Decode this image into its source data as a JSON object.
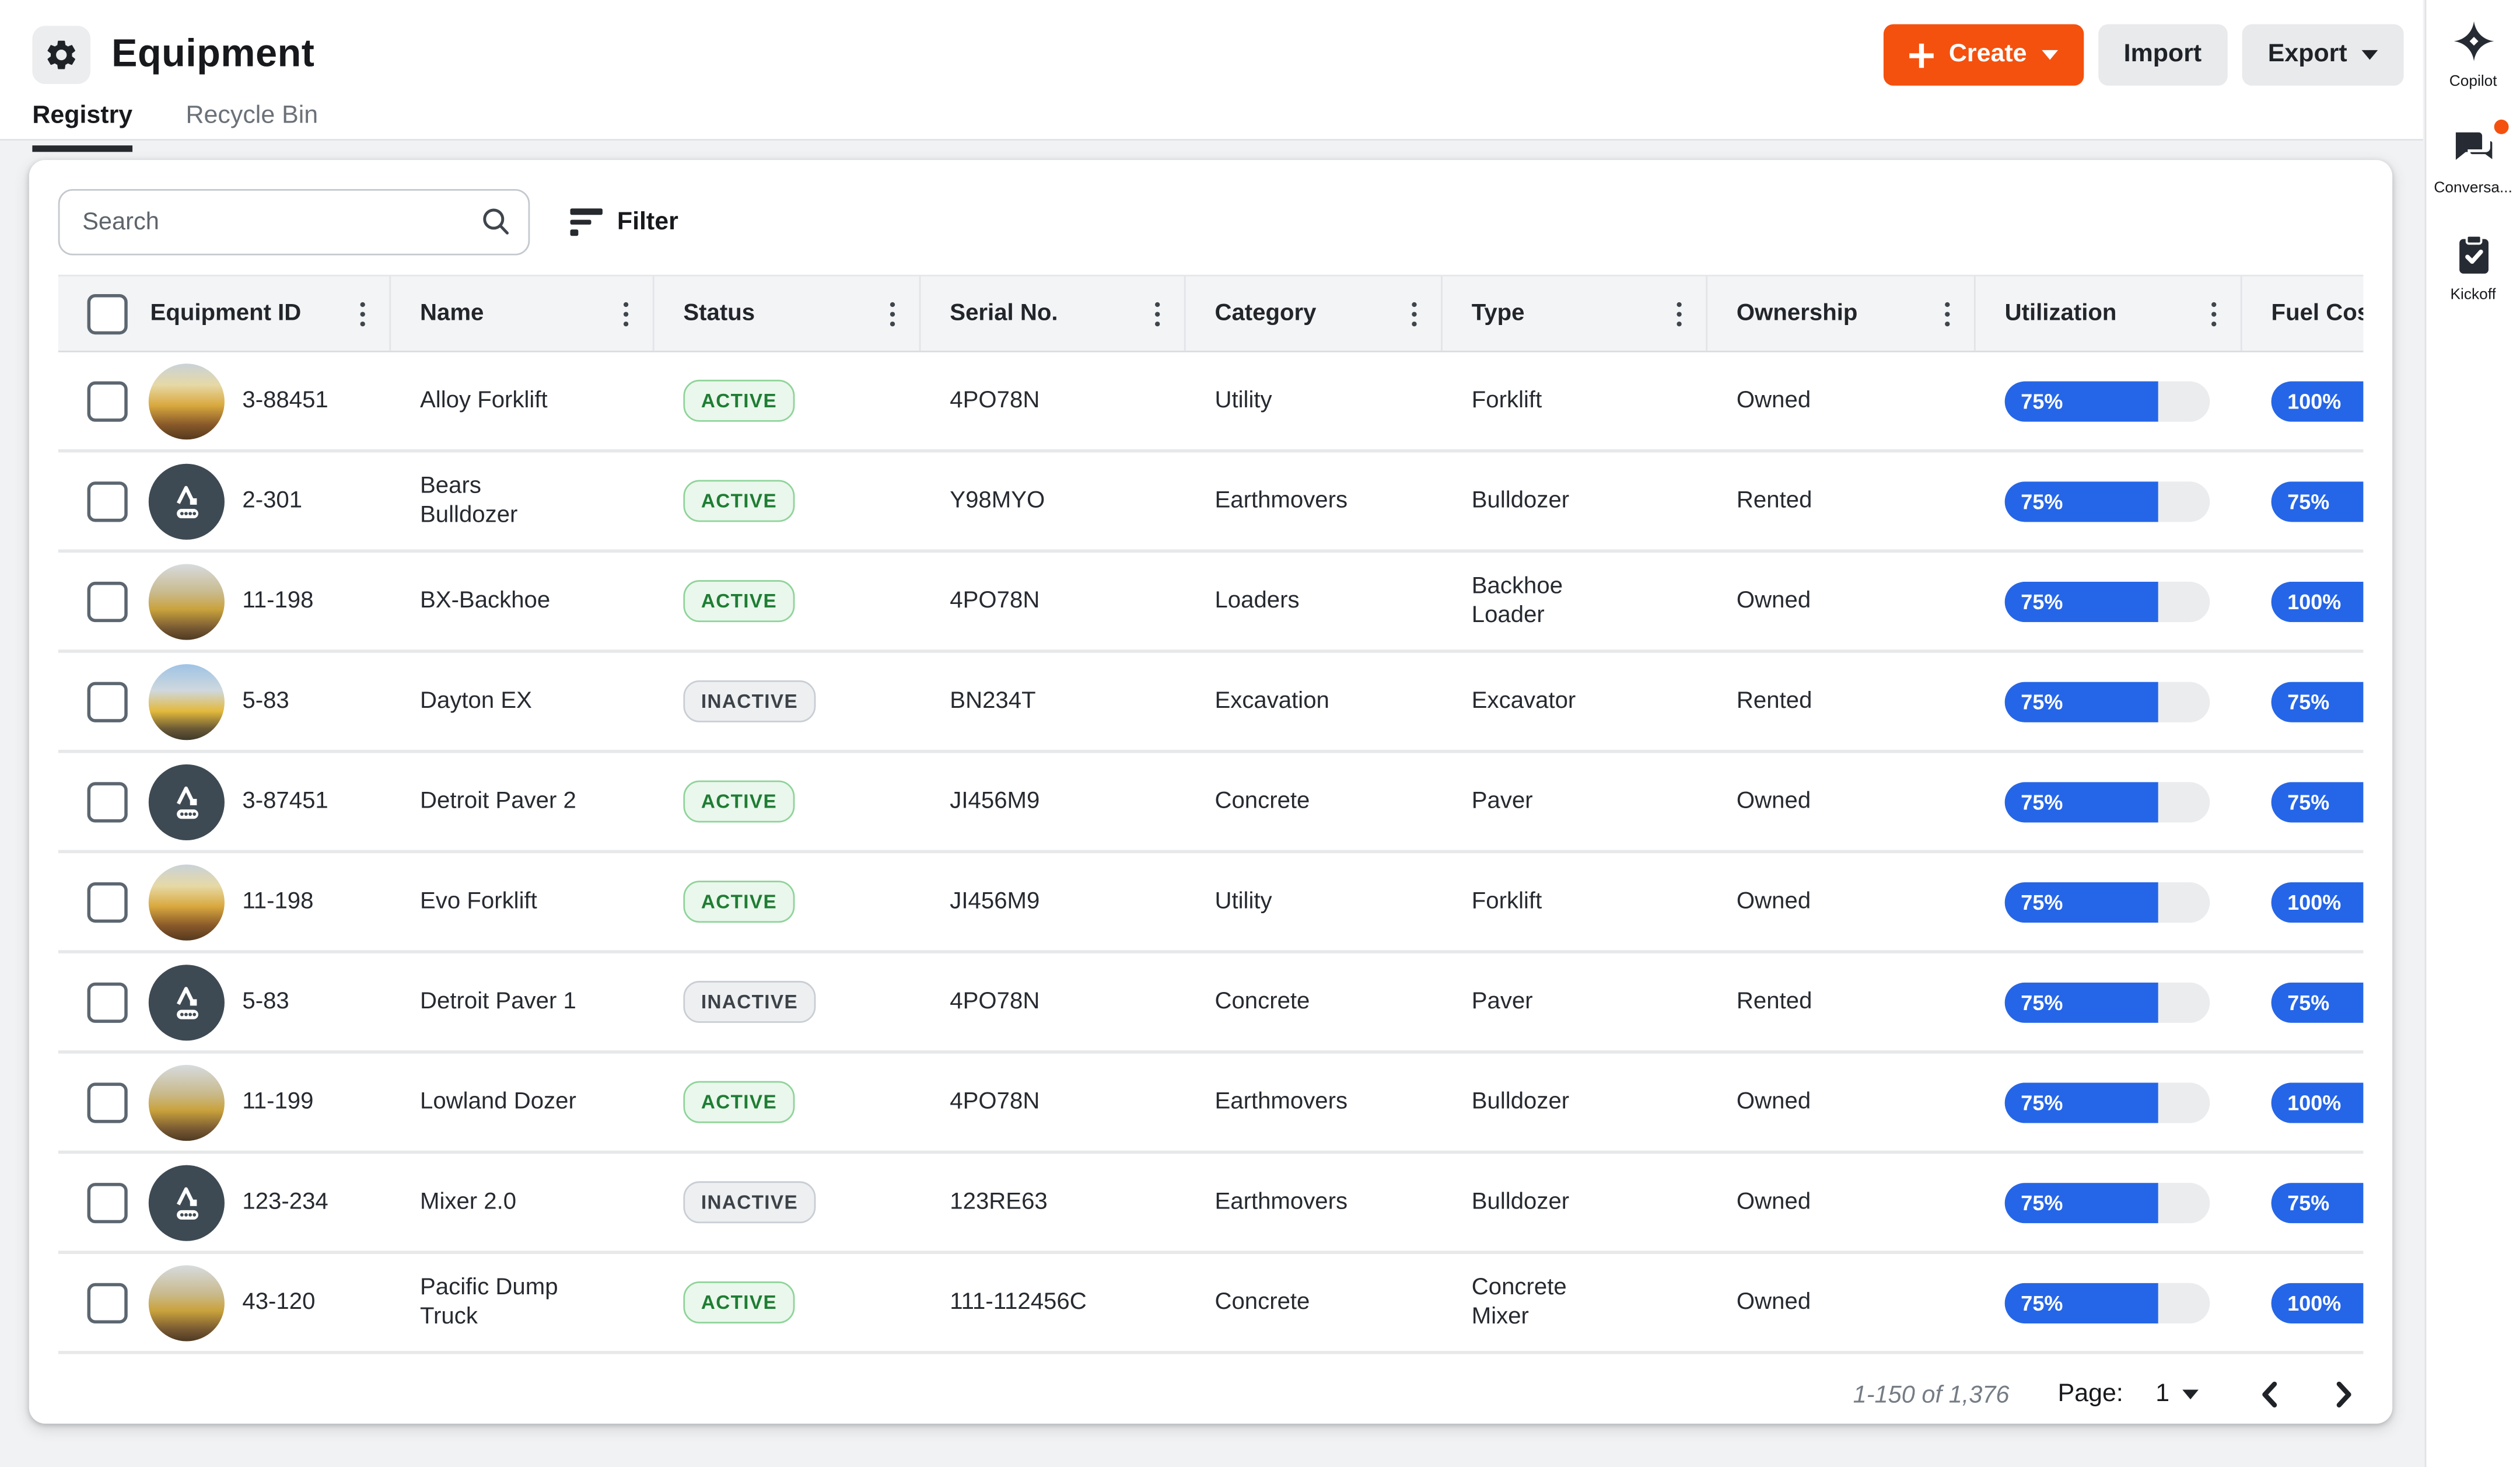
{
  "header": {
    "title": "Equipment",
    "create_label": "Create",
    "import_label": "Import",
    "export_label": "Export"
  },
  "tabs": [
    {
      "label": "Registry",
      "active": true
    },
    {
      "label": "Recycle Bin",
      "active": false
    }
  ],
  "toolbar": {
    "search_placeholder": "Search",
    "filter_label": "Filter"
  },
  "table": {
    "columns": [
      "Equipment ID",
      "Name",
      "Status",
      "Serial No.",
      "Category",
      "Type",
      "Ownership",
      "Utilization",
      "Fuel Costs"
    ],
    "rows": [
      {
        "id": "3-88451",
        "name": "Alloy Forklift",
        "status": "ACTIVE",
        "serial": "4PO78N",
        "category": "Utility",
        "type": "Forklift",
        "ownership": "Owned",
        "utilization": 75,
        "fuel": 100,
        "avatar": "photo-a"
      },
      {
        "id": "2-301",
        "name": "Bears Bulldozer",
        "status": "ACTIVE",
        "serial": "Y98MYO",
        "category": "Earthmovers",
        "type": "Bulldozer",
        "ownership": "Rented",
        "utilization": 75,
        "fuel": 75,
        "avatar": "icon"
      },
      {
        "id": "11-198",
        "name": "BX-Backhoe",
        "status": "ACTIVE",
        "serial": "4PO78N",
        "category": "Loaders",
        "type": "Backhoe Loader",
        "ownership": "Owned",
        "utilization": 75,
        "fuel": 100,
        "avatar": "photo-b"
      },
      {
        "id": "5-83",
        "name": "Dayton EX",
        "status": "INACTIVE",
        "serial": "BN234T",
        "category": "Excavation",
        "type": "Excavator",
        "ownership": "Rented",
        "utilization": 75,
        "fuel": 75,
        "avatar": "photo-c"
      },
      {
        "id": "3-87451",
        "name": "Detroit Paver 2",
        "status": "ACTIVE",
        "serial": "JI456M9",
        "category": "Concrete",
        "type": "Paver",
        "ownership": "Owned",
        "utilization": 75,
        "fuel": 75,
        "avatar": "icon"
      },
      {
        "id": "11-198",
        "name": "Evo Forklift",
        "status": "ACTIVE",
        "serial": "JI456M9",
        "category": "Utility",
        "type": "Forklift",
        "ownership": "Owned",
        "utilization": 75,
        "fuel": 100,
        "avatar": "photo-a"
      },
      {
        "id": "5-83",
        "name": "Detroit Paver 1",
        "status": "INACTIVE",
        "serial": "4PO78N",
        "category": "Concrete",
        "type": "Paver",
        "ownership": "Rented",
        "utilization": 75,
        "fuel": 75,
        "avatar": "icon"
      },
      {
        "id": "11-199",
        "name": "Lowland Dozer",
        "status": "ACTIVE",
        "serial": "4PO78N",
        "category": "Earthmovers",
        "type": "Bulldozer",
        "ownership": "Owned",
        "utilization": 75,
        "fuel": 100,
        "avatar": "photo-b"
      },
      {
        "id": "123-234",
        "name": "Mixer 2.0",
        "status": "INACTIVE",
        "serial": "123RE63",
        "category": "Earthmovers",
        "type": "Bulldozer",
        "ownership": "Owned",
        "utilization": 75,
        "fuel": 75,
        "avatar": "icon"
      },
      {
        "id": "43-120",
        "name": "Pacific Dump Truck",
        "status": "ACTIVE",
        "serial": "111-112456C",
        "category": "Concrete",
        "type": "Concrete Mixer",
        "ownership": "Owned",
        "utilization": 75,
        "fuel": 100,
        "avatar": "photo-b"
      }
    ]
  },
  "pagination": {
    "range": "1-150 of 1,376",
    "page_label": "Page:",
    "page": "1"
  },
  "sidebar": {
    "items": [
      {
        "label": "Copilot",
        "icon": "copilot-sparkle-icon",
        "notification": false
      },
      {
        "label": "Conversa...",
        "icon": "chat-icon",
        "notification": true
      },
      {
        "label": "Kickoff",
        "icon": "clipboard-check-icon",
        "notification": false
      }
    ]
  },
  "colors": {
    "accent_orange": "#F4510E",
    "bar_blue": "#2566E8",
    "active_green_text": "#1E7D33",
    "active_green_bg": "#EAF7EC",
    "inactive_gray_bg": "#EDEFF1",
    "page_background": "#F1F2F4"
  }
}
